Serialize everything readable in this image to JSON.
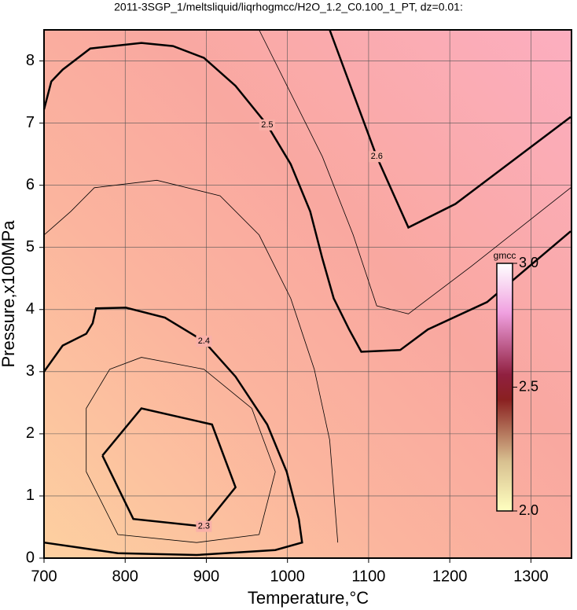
{
  "chart_data": {
    "type": "contour",
    "title": "2011-3SGP_1/meltsliquid/liqrhogmcc/H2O_1.2_C0.100_1_PT, dz=0.01:",
    "x_label": "Temperature,°C",
    "y_label": "Pressure,x100MPa",
    "xlim": [
      700,
      1350
    ],
    "ylim": [
      0,
      8.5
    ],
    "xticks": [
      700,
      800,
      900,
      1000,
      1100,
      1200,
      1300
    ],
    "yticks": [
      0,
      1,
      2,
      3,
      4,
      5,
      6,
      7,
      8
    ],
    "grid": true,
    "contours": [
      {
        "level": 2.5,
        "x": [
          700,
          709,
          723,
          757,
          820,
          859,
          897,
          936,
          975,
          1004,
          1028,
          1043,
          1057,
          1076,
          1091,
          1139,
          1173,
          1246,
          1349
        ],
        "y": [
          7.22,
          7.67,
          7.86,
          8.2,
          8.29,
          8.24,
          8.05,
          7.6,
          6.97,
          6.34,
          5.58,
          4.82,
          4.18,
          3.68,
          3.32,
          3.35,
          3.68,
          4.12,
          5.26
        ]
      },
      {
        "level": 2.4,
        "x": [
          700,
          723,
          752,
          760,
          764,
          801,
          849,
          897,
          936,
          975,
          999,
          1014,
          1018,
          985,
          888,
          791,
          700
        ],
        "y": [
          3.0,
          3.42,
          3.61,
          3.78,
          4.02,
          4.03,
          3.87,
          3.49,
          2.92,
          2.15,
          1.39,
          0.63,
          0.25,
          0.13,
          0.05,
          0.08,
          0.25
        ]
      },
      {
        "level": 2.45,
        "x": [
          700,
          733,
          762,
          839,
          917,
          965,
          1004,
          1033,
          1052,
          1062
        ],
        "y": [
          5.2,
          5.58,
          5.96,
          6.08,
          5.83,
          5.2,
          4.18,
          3.04,
          1.9,
          0.25
        ]
      },
      {
        "level": 2.35,
        "x": [
          781,
          752,
          752,
          791,
          888,
          965,
          985,
          956,
          897,
          820,
          781
        ],
        "y": [
          3.04,
          2.41,
          1.39,
          0.38,
          0.25,
          0.38,
          1.39,
          2.41,
          3.04,
          3.23,
          3.04
        ]
      },
      {
        "level": 2.3,
        "x": [
          772,
          810,
          897,
          936,
          907,
          820,
          772
        ],
        "y": [
          1.65,
          0.63,
          0.51,
          1.14,
          2.15,
          2.41,
          1.65
        ]
      },
      {
        "level": 2.55,
        "x": [
          965,
          1043,
          1081,
          1110,
          1149,
          1226,
          1349
        ],
        "y": [
          8.5,
          6.46,
          5.2,
          4.06,
          3.93,
          4.69,
          5.96
        ]
      },
      {
        "level": 2.6,
        "x": [
          1052,
          1110,
          1149,
          1207,
          1349
        ],
        "y": [
          8.5,
          6.46,
          5.32,
          5.7,
          7.1
        ]
      }
    ],
    "colorbar": {
      "label": "gmcc",
      "lim": [
        2.0,
        3.0
      ],
      "ticks": [
        {
          "value": 2.0,
          "label": "2.0"
        },
        {
          "value": 2.5,
          "label": "2.5"
        },
        {
          "value": 3.0,
          "label": "3.0"
        }
      ]
    }
  }
}
